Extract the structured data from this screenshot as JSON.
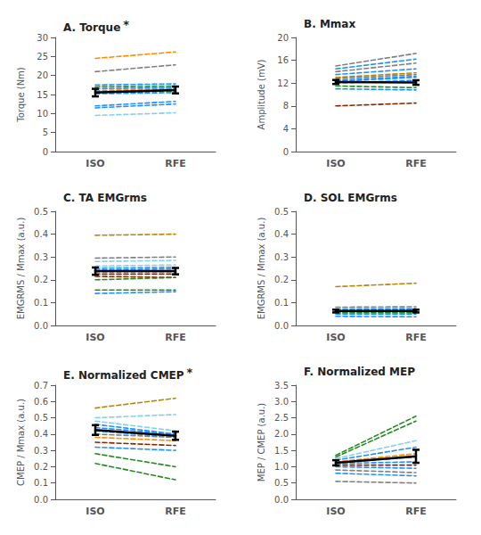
{
  "chart_data": [
    {
      "type": "line",
      "title": "A. Torque",
      "annotations": [
        "*"
      ],
      "categories": [
        "ISO",
        "RFE"
      ],
      "ylabel": "Torque (Nm)",
      "ylim": [
        0,
        30
      ],
      "yticks": [
        0,
        5,
        10,
        15,
        20,
        25,
        30
      ],
      "grid": false,
      "series": [
        {
          "color": "#FF8C00",
          "line_style": "dashed",
          "values": [
            24.5,
            26.2
          ]
        },
        {
          "color": "#808080",
          "line_style": "dashed",
          "values": [
            21.0,
            22.8
          ]
        },
        {
          "color": "#1E90FF",
          "line_style": "dashed",
          "values": [
            17.5,
            17.8
          ]
        },
        {
          "color": "#228B22",
          "line_style": "dashed",
          "values": [
            17.0,
            17.2
          ]
        },
        {
          "color": "#1E90FF",
          "line_style": "dashed",
          "values": [
            16.5,
            16.8
          ]
        },
        {
          "color": "#FF8C00",
          "line_style": "dashed",
          "values": [
            16.0,
            16.5
          ]
        },
        {
          "color": "#1E90FF",
          "line_style": "dashed",
          "values": [
            15.8,
            16.2
          ]
        },
        {
          "color": "#228B22",
          "line_style": "dashed",
          "values": [
            15.5,
            15.8
          ]
        },
        {
          "color": "#1E90FF",
          "line_style": "dashed",
          "values": [
            15.2,
            15.5
          ]
        },
        {
          "color": "#1E90FF",
          "line_style": "dashed",
          "values": [
            12.0,
            13.2
          ]
        },
        {
          "color": "#1E90FF",
          "line_style": "dashed",
          "values": [
            11.5,
            12.5
          ]
        },
        {
          "color": "#87CEEB",
          "line_style": "dashed",
          "values": [
            9.5,
            10.2
          ]
        },
        {
          "color": "black",
          "line_style": "solid",
          "values": [
            15.5,
            16.2
          ],
          "sem": [
            1.0,
            0.9
          ]
        }
      ]
    },
    {
      "type": "line",
      "title": "B. Mmax",
      "categories": [
        "ISO",
        "RFE"
      ],
      "ylabel": "Amplitude (mV)",
      "ylim": [
        0,
        20
      ],
      "yticks": [
        0,
        4,
        8,
        12,
        16,
        20
      ],
      "grid": false,
      "series": [
        {
          "color": "#808080",
          "line_style": "dashed",
          "values": [
            15.0,
            17.2
          ]
        },
        {
          "color": "#1E90FF",
          "line_style": "dashed",
          "values": [
            14.5,
            16.2
          ]
        },
        {
          "color": "#808080",
          "line_style": "dashed",
          "values": [
            14.0,
            15.5
          ]
        },
        {
          "color": "#1E90FF",
          "line_style": "dashed",
          "values": [
            13.5,
            14.5
          ]
        },
        {
          "color": "#B8860B",
          "line_style": "dashed",
          "values": [
            13.0,
            13.8
          ]
        },
        {
          "color": "#808080",
          "line_style": "dashed",
          "values": [
            12.8,
            13.5
          ]
        },
        {
          "color": "#1E90FF",
          "line_style": "dashed",
          "values": [
            12.5,
            13.2
          ]
        },
        {
          "color": "#1E90FF",
          "line_style": "dashed",
          "values": [
            12.3,
            13.0
          ]
        },
        {
          "color": "#1E90FF",
          "line_style": "dashed",
          "values": [
            12.0,
            12.5
          ]
        },
        {
          "color": "#228B22",
          "line_style": "dashed",
          "values": [
            11.5,
            11.2
          ]
        },
        {
          "color": "#1E90FF",
          "line_style": "dashed",
          "values": [
            11.0,
            10.8
          ]
        },
        {
          "color": "#8B2500",
          "line_style": "dashed",
          "values": [
            8.0,
            8.5
          ]
        },
        {
          "color": "black",
          "line_style": "solid",
          "values": [
            12.2,
            12.1
          ],
          "sem": [
            0.35,
            0.4
          ]
        }
      ]
    },
    {
      "type": "line",
      "title": "C. TA EMGrms",
      "categories": [
        "ISO",
        "RFE"
      ],
      "ylabel": "EMGRMS / Mmax (a.u.)",
      "ylim": [
        0.0,
        0.5
      ],
      "yticks": [
        {
          "value": 0.0,
          "label": "0.0"
        },
        0.1,
        0.2,
        0.3,
        0.4,
        0.5
      ],
      "grid": false,
      "series": [
        {
          "color": "#B8860B",
          "line_style": "dashed",
          "values": [
            0.395,
            0.4
          ]
        },
        {
          "color": "#808080",
          "line_style": "dashed",
          "values": [
            0.295,
            0.3
          ]
        },
        {
          "color": "#87CEEB",
          "line_style": "dashed",
          "values": [
            0.28,
            0.285
          ]
        },
        {
          "color": "#87CEEB",
          "line_style": "dashed",
          "values": [
            0.26,
            0.265
          ]
        },
        {
          "color": "#1E90FF",
          "line_style": "dashed",
          "values": [
            0.25,
            0.255
          ]
        },
        {
          "color": "#1E90FF",
          "line_style": "dashed",
          "values": [
            0.242,
            0.248
          ]
        },
        {
          "color": "#1E90FF",
          "line_style": "dashed",
          "values": [
            0.235,
            0.235
          ]
        },
        {
          "color": "#8B2500",
          "line_style": "dashed",
          "values": [
            0.225,
            0.225
          ]
        },
        {
          "color": "#8B2500",
          "line_style": "dashed",
          "values": [
            0.215,
            0.21
          ]
        },
        {
          "color": "#228B22",
          "line_style": "dashed",
          "values": [
            0.2,
            0.21
          ]
        },
        {
          "color": "#228B22",
          "line_style": "dashed",
          "values": [
            0.155,
            0.155
          ]
        },
        {
          "color": "#1E90FF",
          "line_style": "dashed",
          "values": [
            0.14,
            0.148
          ]
        },
        {
          "color": "black",
          "line_style": "solid",
          "values": [
            0.238,
            0.238
          ],
          "sem": [
            0.016,
            0.014
          ]
        }
      ]
    },
    {
      "type": "line",
      "title": "D. SOL EMGrms",
      "categories": [
        "ISO",
        "RFE"
      ],
      "ylabel": "EMGRMS / Mmax (a.u.)",
      "ylim": [
        0.0,
        0.5
      ],
      "yticks": [
        {
          "value": 0.0,
          "label": "0.0"
        },
        0.1,
        0.2,
        0.3,
        0.4,
        0.5
      ],
      "grid": false,
      "series": [
        {
          "color": "#B8860B",
          "line_style": "dashed",
          "values": [
            0.17,
            0.185
          ]
        },
        {
          "color": "#808080",
          "line_style": "dashed",
          "values": [
            0.08,
            0.082
          ]
        },
        {
          "color": "#87CEEB",
          "line_style": "dashed",
          "values": [
            0.075,
            0.076
          ]
        },
        {
          "color": "#1E90FF",
          "line_style": "dashed",
          "values": [
            0.07,
            0.072
          ]
        },
        {
          "color": "#1E90FF",
          "line_style": "dashed",
          "values": [
            0.068,
            0.068
          ]
        },
        {
          "color": "#1E90FF",
          "line_style": "dashed",
          "values": [
            0.065,
            0.065
          ]
        },
        {
          "color": "#8B2500",
          "line_style": "dashed",
          "values": [
            0.062,
            0.062
          ]
        },
        {
          "color": "#8B2500",
          "line_style": "dashed",
          "values": [
            0.06,
            0.06
          ]
        },
        {
          "color": "#228B22",
          "line_style": "dashed",
          "values": [
            0.057,
            0.058
          ]
        },
        {
          "color": "#228B22",
          "line_style": "dashed",
          "values": [
            0.055,
            0.055
          ]
        },
        {
          "color": "#1E90FF",
          "line_style": "dashed",
          "values": [
            0.05,
            0.05
          ]
        },
        {
          "color": "#1E90FF",
          "line_style": "dashed",
          "values": [
            0.04,
            0.038
          ]
        },
        {
          "color": "black",
          "line_style": "solid",
          "values": [
            0.063,
            0.063
          ],
          "sem": [
            0.006,
            0.006
          ]
        }
      ]
    },
    {
      "type": "line",
      "title": "E. Normalized CMEP",
      "annotations": [
        "*"
      ],
      "categories": [
        "ISO",
        "RFE"
      ],
      "ylabel": "CMEP / Mmax (a.u.)",
      "ylim": [
        0.0,
        0.7
      ],
      "yticks": [
        {
          "value": 0.0,
          "label": "0.0"
        },
        0.1,
        0.2,
        0.3,
        0.4,
        0.5,
        0.6,
        0.7
      ],
      "grid": false,
      "series": [
        {
          "color": "#B8860B",
          "line_style": "dashed",
          "values": [
            0.56,
            0.62
          ]
        },
        {
          "color": "#87CEEB",
          "line_style": "dashed",
          "values": [
            0.5,
            0.52
          ]
        },
        {
          "color": "#87CEEB",
          "line_style": "dashed",
          "values": [
            0.48,
            0.42
          ]
        },
        {
          "color": "#1E90FF",
          "line_style": "dashed",
          "values": [
            0.46,
            0.4
          ]
        },
        {
          "color": "#1E90FF",
          "line_style": "dashed",
          "values": [
            0.44,
            0.4
          ]
        },
        {
          "color": "#1E90FF",
          "line_style": "dashed",
          "values": [
            0.42,
            0.38
          ]
        },
        {
          "color": "#808080",
          "line_style": "dashed",
          "values": [
            0.4,
            0.38
          ]
        },
        {
          "color": "#FF8C00",
          "line_style": "dashed",
          "values": [
            0.38,
            0.36
          ]
        },
        {
          "color": "#8B2500",
          "line_style": "dashed",
          "values": [
            0.35,
            0.33
          ]
        },
        {
          "color": "#1E90FF",
          "line_style": "dashed",
          "values": [
            0.32,
            0.3
          ]
        },
        {
          "color": "#228B22",
          "line_style": "dashed",
          "values": [
            0.28,
            0.2
          ]
        },
        {
          "color": "#228B22",
          "line_style": "dashed",
          "values": [
            0.22,
            0.12
          ]
        },
        {
          "color": "black",
          "line_style": "solid",
          "values": [
            0.425,
            0.39
          ],
          "sem": [
            0.03,
            0.025
          ]
        }
      ]
    },
    {
      "type": "line",
      "title": "F. Normalized MEP",
      "categories": [
        "ISO",
        "RFE"
      ],
      "ylabel": "MEP / CMEP (a.u.)",
      "ylim": [
        0.0,
        3.5
      ],
      "yticks": [
        {
          "value": 0.0,
          "label": "0.0"
        },
        0.5,
        {
          "value": 1.0,
          "label": "1.0"
        },
        1.5,
        {
          "value": 2.0,
          "label": "2.0"
        },
        2.5,
        {
          "value": 3.0,
          "label": "3.0"
        },
        3.5
      ],
      "grid": false,
      "series": [
        {
          "color": "#228B22",
          "line_style": "dashed",
          "values": [
            1.35,
            2.55
          ]
        },
        {
          "color": "#228B22",
          "line_style": "dashed",
          "values": [
            1.3,
            2.4
          ]
        },
        {
          "color": "#87CEEB",
          "line_style": "dashed",
          "values": [
            1.25,
            1.8
          ]
        },
        {
          "color": "#1E90FF",
          "line_style": "dashed",
          "values": [
            1.2,
            1.6
          ]
        },
        {
          "color": "#FF8C00",
          "line_style": "dashed",
          "values": [
            1.15,
            1.4
          ]
        },
        {
          "color": "#1E90FF",
          "line_style": "dashed",
          "values": [
            1.12,
            1.3
          ]
        },
        {
          "color": "#1E90FF",
          "line_style": "dashed",
          "values": [
            1.1,
            1.15
          ]
        },
        {
          "color": "#8B2500",
          "line_style": "dashed",
          "values": [
            1.05,
            1.05
          ]
        },
        {
          "color": "#1E90FF",
          "line_style": "dashed",
          "values": [
            1.0,
            0.95
          ]
        },
        {
          "color": "#808080",
          "line_style": "dashed",
          "values": [
            0.9,
            0.82
          ]
        },
        {
          "color": "#1E90FF",
          "line_style": "dashed",
          "values": [
            0.8,
            0.72
          ]
        },
        {
          "color": "#808080",
          "line_style": "dashed",
          "values": [
            0.55,
            0.5
          ]
        },
        {
          "color": "black",
          "line_style": "solid",
          "values": [
            1.12,
            1.32
          ],
          "sem": [
            0.08,
            0.2
          ]
        }
      ]
    }
  ]
}
